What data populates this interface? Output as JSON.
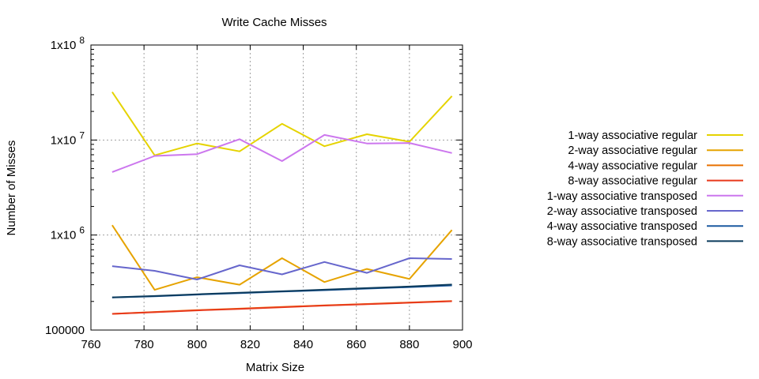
{
  "chart_data": {
    "type": "line",
    "title": "Write Cache Misses",
    "xlabel": "Matrix Size",
    "ylabel": "Number of Misses",
    "x_scale": "linear",
    "y_scale": "log",
    "xlim": [
      760,
      900
    ],
    "ylim": [
      100000,
      100000000
    ],
    "x_ticks": [
      760,
      780,
      800,
      820,
      840,
      860,
      880,
      900
    ],
    "x_tick_labels": [
      "760",
      "780",
      "800",
      "820",
      "840",
      "860",
      "880",
      "900"
    ],
    "y_ticks": [
      100000,
      1000000,
      10000000,
      100000000
    ],
    "y_tick_labels": [
      {
        "base": "100000",
        "exp": ""
      },
      {
        "base": "1x10",
        "exp": "6"
      },
      {
        "base": "1x10",
        "exp": "7"
      },
      {
        "base": "1x10",
        "exp": "8"
      }
    ],
    "grid": true,
    "legend_position": "right",
    "x": [
      768,
      784,
      800,
      816,
      832,
      848,
      864,
      880,
      896
    ],
    "series": [
      {
        "name": "1-way associative regular",
        "color": "#e5d300",
        "values": [
          32000000,
          6900000,
          9200000,
          7600000,
          14800000,
          8600000,
          11500000,
          9600000,
          29000000
        ]
      },
      {
        "name": "2-way associative regular",
        "color": "#e6a300",
        "values": [
          1270000,
          265000,
          360000,
          300000,
          570000,
          320000,
          440000,
          345000,
          1130000
        ]
      },
      {
        "name": "4-way associative regular",
        "color": "#e87000",
        "values": [
          148000,
          155000,
          162000,
          168000,
          175000,
          182000,
          188000,
          195000,
          202000
        ]
      },
      {
        "name": "8-way associative regular",
        "color": "#e8391c",
        "values": [
          148000,
          154000,
          161000,
          167000,
          174000,
          181000,
          187000,
          194000,
          201000
        ]
      },
      {
        "name": "1-way associative transposed",
        "color": "#cc77ee",
        "values": [
          4600000,
          6800000,
          7100000,
          10200000,
          6000000,
          11300000,
          9200000,
          9300000,
          7300000
        ]
      },
      {
        "name": "2-way associative transposed",
        "color": "#6666cc",
        "values": [
          470000,
          420000,
          340000,
          480000,
          385000,
          520000,
          400000,
          570000,
          560000
        ]
      },
      {
        "name": "4-way associative transposed",
        "color": "#1c5aa0",
        "values": [
          220000,
          227000,
          236000,
          245000,
          254000,
          263000,
          273000,
          283000,
          295000
        ]
      },
      {
        "name": "8-way associative transposed",
        "color": "#0a3a5c",
        "values": [
          221000,
          228000,
          238000,
          247000,
          256000,
          266000,
          276000,
          287000,
          301000
        ]
      }
    ]
  }
}
